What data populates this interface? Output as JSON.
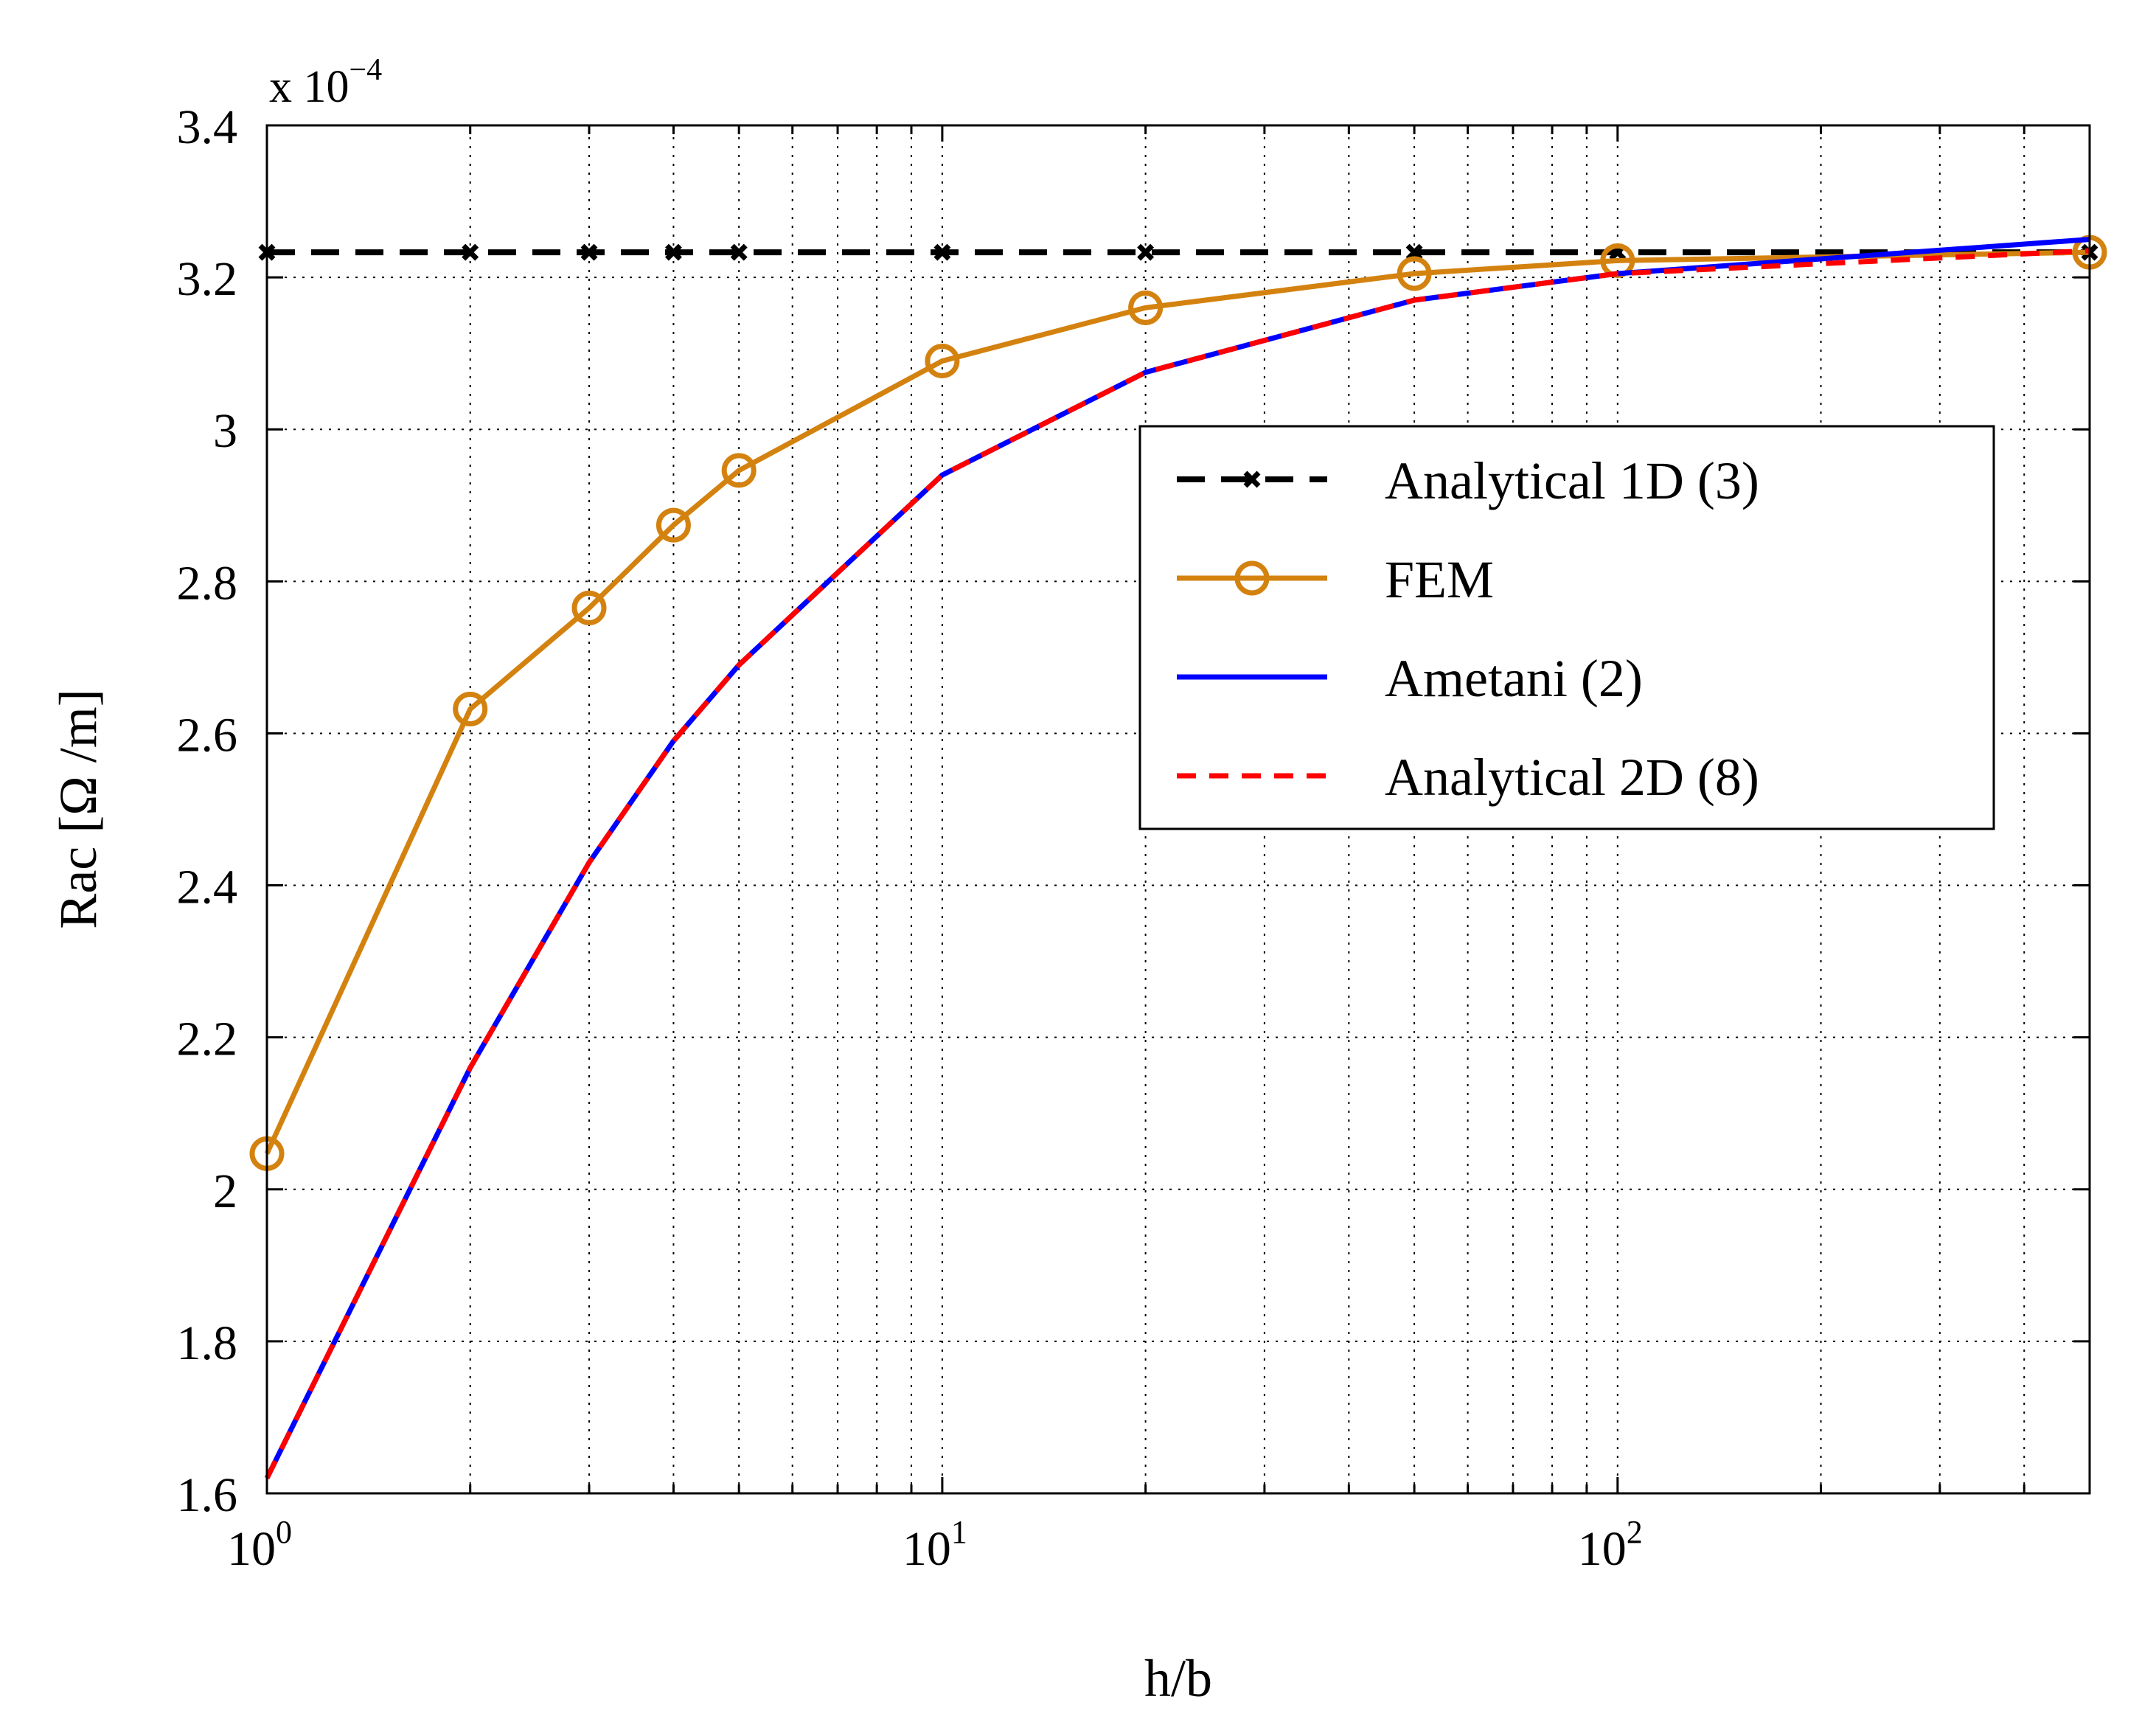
{
  "chart_data": {
    "type": "line",
    "title": "",
    "xlabel": "h/b",
    "ylabel": "Rac [Ω /m]",
    "xscale": "log",
    "xlim": [
      1,
      500
    ],
    "ylim": [
      1.6,
      3.4
    ],
    "y_multiplier_base": "x 10",
    "y_multiplier_exp": "−4",
    "xticks": [
      {
        "value": 1,
        "base": "10",
        "exp": "0"
      },
      {
        "value": 10,
        "base": "10",
        "exp": "1"
      },
      {
        "value": 100,
        "base": "10",
        "exp": "2"
      }
    ],
    "yticks": [
      {
        "value": 1.6,
        "label": "1.6"
      },
      {
        "value": 1.8,
        "label": "1.8"
      },
      {
        "value": 2.0,
        "label": "2"
      },
      {
        "value": 2.2,
        "label": "2.2"
      },
      {
        "value": 2.4,
        "label": "2.4"
      },
      {
        "value": 2.6,
        "label": "2.6"
      },
      {
        "value": 2.8,
        "label": "2.8"
      },
      {
        "value": 3.0,
        "label": "3"
      },
      {
        "value": 3.2,
        "label": "3.2"
      },
      {
        "value": 3.4,
        "label": "3.4"
      }
    ],
    "grid": true,
    "legend_position": "upper-right",
    "series": [
      {
        "name": "Analytical 1D (3)",
        "color": "#000000",
        "style": "dashed",
        "marker": "x",
        "x": [
          1,
          2,
          3,
          4,
          5,
          10,
          20,
          50,
          100,
          500
        ],
        "y": [
          3.233,
          3.233,
          3.233,
          3.233,
          3.233,
          3.233,
          3.233,
          3.233,
          3.233,
          3.233
        ]
      },
      {
        "name": "FEM",
        "color": "#d4820f",
        "style": "solid",
        "marker": "o",
        "x": [
          1,
          2,
          3,
          4,
          5,
          10,
          20,
          50,
          100,
          500
        ],
        "y": [
          2.047,
          2.632,
          2.765,
          2.874,
          2.946,
          3.09,
          3.16,
          3.205,
          3.222,
          3.233
        ]
      },
      {
        "name": "Ametani (2)",
        "color": "#0000ff",
        "style": "solid",
        "marker": "none",
        "x": [
          1,
          2,
          3,
          4,
          5,
          10,
          20,
          50,
          100,
          500
        ],
        "y": [
          1.62,
          2.16,
          2.43,
          2.59,
          2.69,
          2.94,
          3.075,
          3.17,
          3.205,
          3.25
        ]
      },
      {
        "name": "Analytical 2D (8)",
        "color": "#ff0000",
        "style": "dashed",
        "marker": "none",
        "x": [
          1,
          2,
          3,
          4,
          5,
          10,
          20,
          50,
          100,
          500
        ],
        "y": [
          1.62,
          2.16,
          2.43,
          2.59,
          2.69,
          2.94,
          3.075,
          3.17,
          3.205,
          3.235
        ]
      }
    ]
  }
}
